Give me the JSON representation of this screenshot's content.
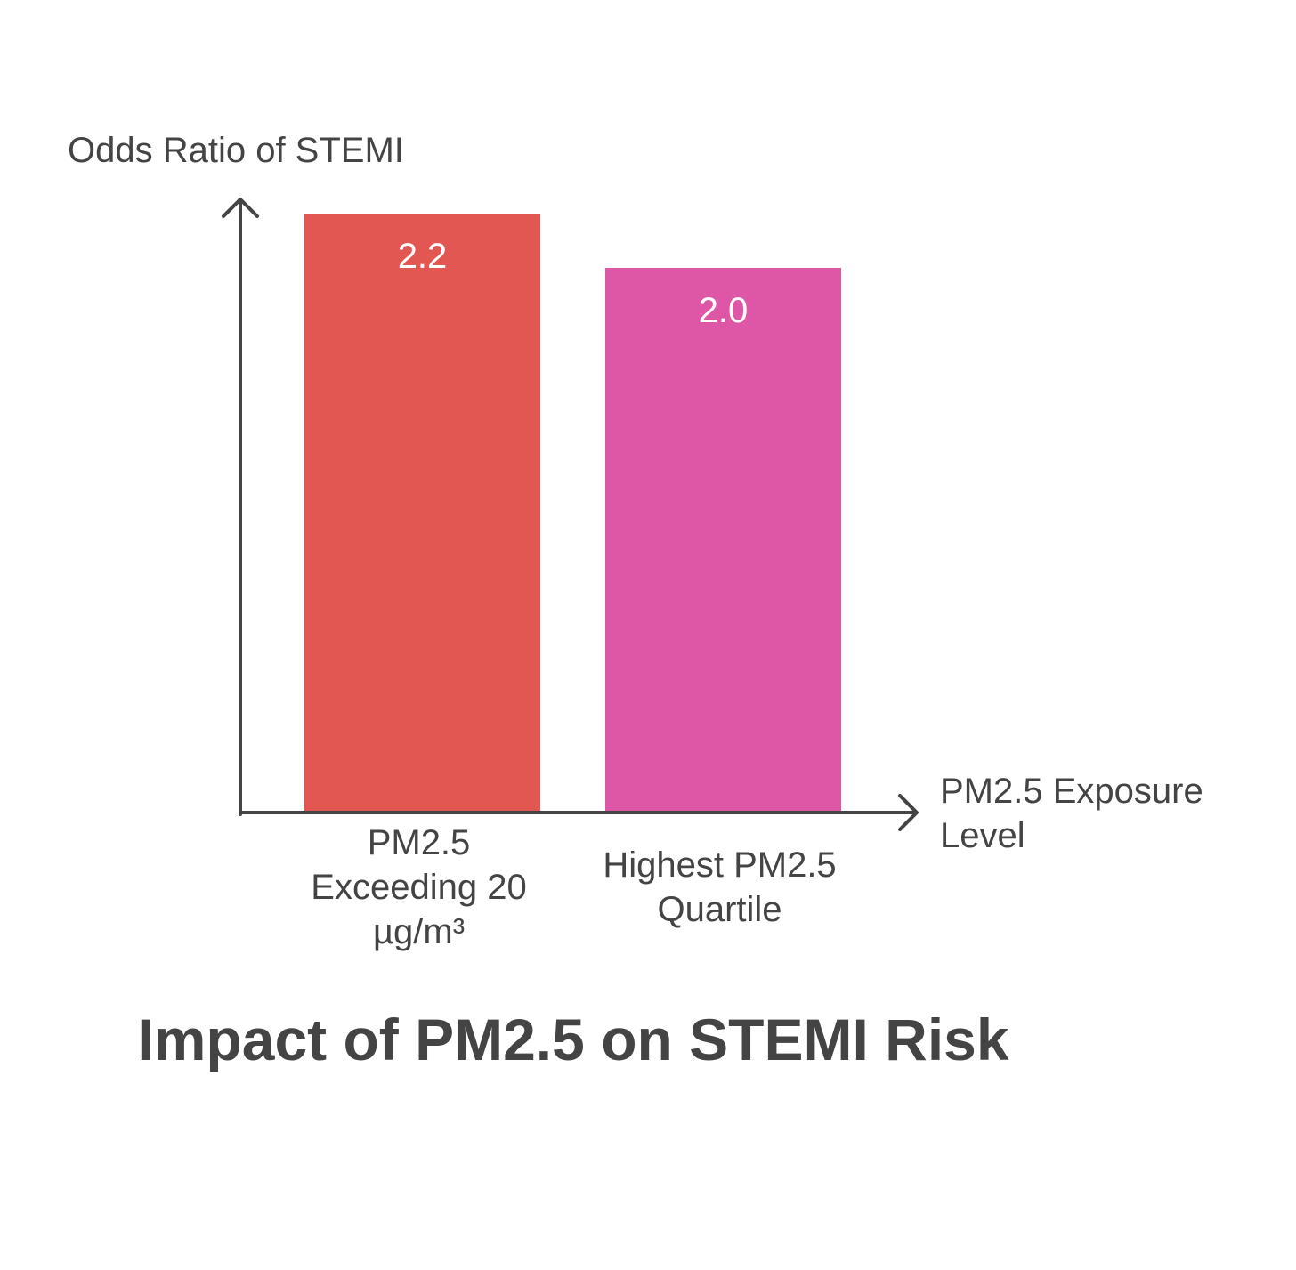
{
  "chart_data": {
    "type": "bar",
    "title": "Impact of PM2.5 on STEMI Risk",
    "ylabel": "Odds Ratio of STEMI",
    "xlabel": "PM2.5 Exposure Level",
    "categories": [
      "PM2.5 Exceeding 20 µg/m³",
      "Highest PM2.5 Quartile"
    ],
    "values": [
      2.2,
      2.0
    ],
    "value_labels": [
      "2.2",
      "2.0"
    ],
    "bar_colors": [
      "#e35753",
      "#dd57a6"
    ],
    "ylim": [
      0,
      2.2
    ],
    "grid": false,
    "legend": "none"
  },
  "colors": {
    "axis": "#444444",
    "text": "#444444",
    "value_label": "#ffffff"
  }
}
